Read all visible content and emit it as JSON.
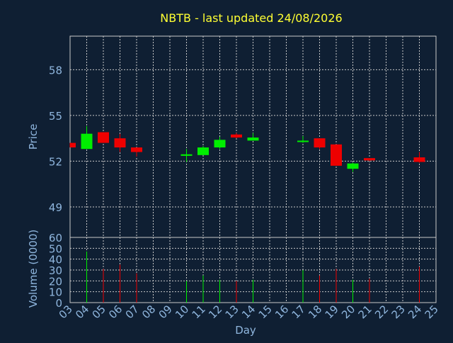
{
  "chart_data": {
    "type": "candlestick",
    "title": "NBTB - last updated 24/08/2026",
    "xlabel": "Day",
    "ylabel_price": "Price",
    "ylabel_volume": "Volume (0000)",
    "price_ticks": [
      "58",
      "55",
      "52",
      "49"
    ],
    "price_tick_values": [
      58,
      55,
      52,
      49
    ],
    "price_ylim": [
      47,
      60.2
    ],
    "volume_ticks": [
      "60",
      "50",
      "40",
      "30",
      "20",
      "10",
      "0"
    ],
    "volume_tick_values": [
      60,
      50,
      40,
      30,
      20,
      10,
      0
    ],
    "volume_ylim": [
      0,
      60
    ],
    "x_ticks": [
      "03",
      "04",
      "05",
      "06",
      "07",
      "08",
      "09",
      "10",
      "11",
      "12",
      "13",
      "14",
      "15",
      "16",
      "17",
      "18",
      "19",
      "20",
      "21",
      "22",
      "23",
      "24",
      "25"
    ],
    "grid": true,
    "colors": {
      "background": "#0f1f33",
      "up": "#00ee00",
      "down": "#ee0000",
      "title": "#ffff33",
      "axis_label": "#8fb6de",
      "grid": "#c8c8c8",
      "frame": "#c8c8c8"
    },
    "candles": [
      {
        "day": "03",
        "open": 53.2,
        "high": 53.2,
        "low": 52.9,
        "close": 52.9
      },
      {
        "day": "04",
        "open": 52.8,
        "high": 54.3,
        "low": 52.8,
        "close": 53.8
      },
      {
        "day": "05",
        "open": 53.9,
        "high": 53.9,
        "low": 53.2,
        "close": 53.2
      },
      {
        "day": "06",
        "open": 53.5,
        "high": 53.8,
        "low": 52.6,
        "close": 52.9
      },
      {
        "day": "07",
        "open": 52.9,
        "high": 52.9,
        "low": 52.3,
        "close": 52.6
      },
      {
        "day": "10",
        "open": 52.35,
        "high": 52.8,
        "low": 51.95,
        "close": 52.45
      },
      {
        "day": "11",
        "open": 52.4,
        "high": 53.0,
        "low": 52.4,
        "close": 52.9
      },
      {
        "day": "12",
        "open": 52.9,
        "high": 53.6,
        "low": 52.8,
        "close": 53.4
      },
      {
        "day": "13",
        "open": 53.75,
        "high": 53.85,
        "low": 53.5,
        "close": 53.55
      },
      {
        "day": "14",
        "open": 53.35,
        "high": 53.85,
        "low": 53.35,
        "close": 53.55
      },
      {
        "day": "17",
        "open": 53.25,
        "high": 53.65,
        "low": 53.2,
        "close": 53.3
      },
      {
        "day": "18",
        "open": 53.5,
        "high": 53.5,
        "low": 52.8,
        "close": 52.9
      },
      {
        "day": "19",
        "open": 53.1,
        "high": 53.1,
        "low": 51.7,
        "close": 51.7
      },
      {
        "day": "20",
        "open": 51.5,
        "high": 51.9,
        "low": 51.3,
        "close": 51.85
      },
      {
        "day": "21",
        "open": 52.2,
        "high": 52.2,
        "low": 52.0,
        "close": 52.05
      },
      {
        "day": "24",
        "open": 52.25,
        "high": 52.6,
        "low": 51.9,
        "close": 51.95
      }
    ],
    "volume": [
      {
        "day": "04",
        "value": 47,
        "direction": "up"
      },
      {
        "day": "05",
        "value": 31,
        "direction": "down"
      },
      {
        "day": "06",
        "value": 35,
        "direction": "down"
      },
      {
        "day": "07",
        "value": 27,
        "direction": "down"
      },
      {
        "day": "10",
        "value": 20,
        "direction": "up"
      },
      {
        "day": "11",
        "value": 25,
        "direction": "up"
      },
      {
        "day": "12",
        "value": 21,
        "direction": "up"
      },
      {
        "day": "13",
        "value": 20,
        "direction": "down"
      },
      {
        "day": "14",
        "value": 21,
        "direction": "up"
      },
      {
        "day": "17",
        "value": 30,
        "direction": "up"
      },
      {
        "day": "18",
        "value": 25,
        "direction": "down"
      },
      {
        "day": "19",
        "value": 31,
        "direction": "down"
      },
      {
        "day": "20",
        "value": 21,
        "direction": "up"
      },
      {
        "day": "21",
        "value": 22,
        "direction": "down"
      },
      {
        "day": "24",
        "value": 33,
        "direction": "down"
      }
    ]
  }
}
